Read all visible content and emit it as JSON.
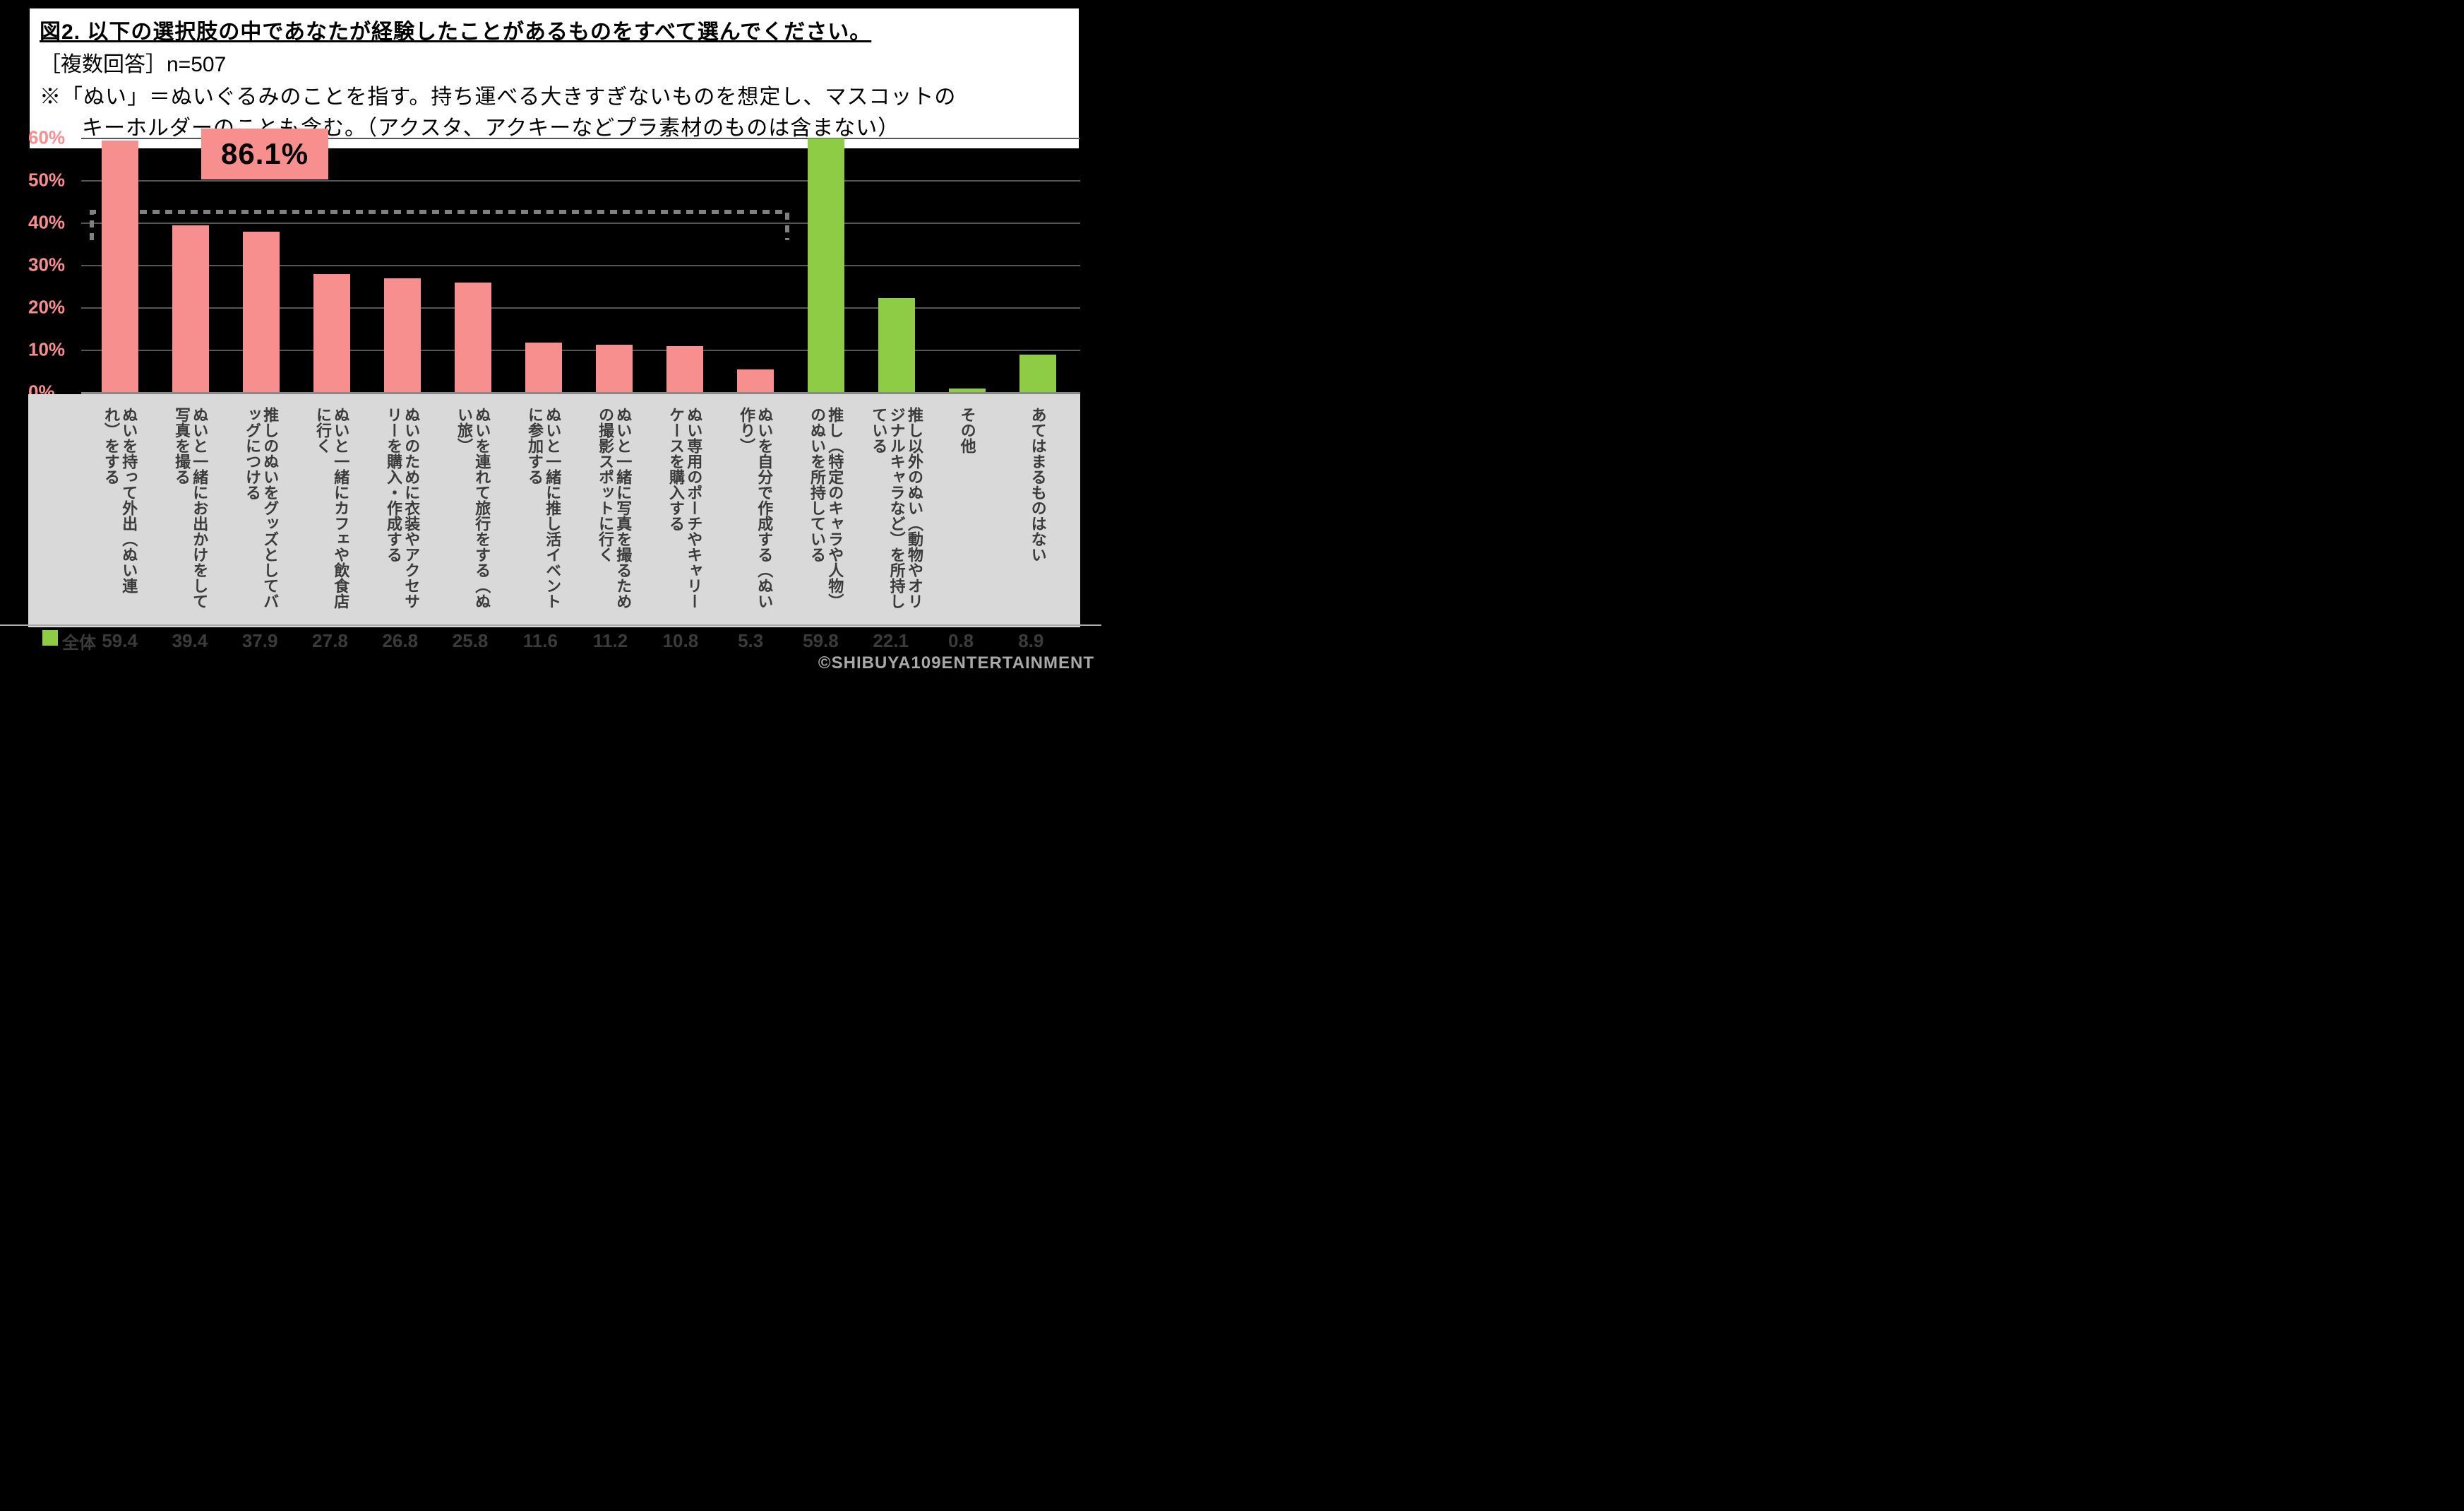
{
  "header": {
    "title": "図2. 以下の選択肢の中であなたが経験したことがあるものをすべて選んでください。",
    "subtitle": "［複数回答］n=507",
    "note1": "※「ぬい」＝ぬいぐるみのことを指す。持ち運べる大きすぎないものを想定し、マスコットの",
    "note2": "キーホルダーのことも含む。（アクスタ、アクキーなどプラ素材のものは含まない）"
  },
  "chart": {
    "type": "bar",
    "ylim": [
      0,
      60
    ],
    "ytick_step": 10,
    "ytick_labels": [
      "0%",
      "10%",
      "20%",
      "30%",
      "40%",
      "50%",
      "60%"
    ],
    "ylabel_color": "#f68f8e",
    "grid_color": "#555555",
    "baseline_color": "#888888",
    "callout": "86.1%",
    "callout_bg": "#f68f8e",
    "callout_color": "#000000",
    "bars": [
      {
        "label": "ぬいを持って外出（ぬい連れ）をする",
        "value": 59.4,
        "color": "#f68f8e"
      },
      {
        "label": "ぬいと一緒にお出かけをして写真を撮る",
        "value": 39.4,
        "color": "#f68f8e"
      },
      {
        "label": "推しのぬいをグッズとしてバッグにつける",
        "value": 37.9,
        "color": "#f68f8e"
      },
      {
        "label": "ぬいと一緒にカフェや飲食店に行く",
        "value": 27.8,
        "color": "#f68f8e"
      },
      {
        "label": "ぬいのために衣装やアクセサリーを購入・作成する",
        "value": 26.8,
        "color": "#f68f8e"
      },
      {
        "label": "ぬいを連れて旅行をする（ぬい旅）",
        "value": 25.8,
        "color": "#f68f8e"
      },
      {
        "label": "ぬいと一緒に推し活イベントに参加する",
        "value": 11.6,
        "color": "#f68f8e"
      },
      {
        "label": "ぬいと一緒に写真を撮るための撮影スポットに行く",
        "value": 11.2,
        "color": "#f68f8e"
      },
      {
        "label": "ぬい専用のポーチやキャリーケースを購入する",
        "value": 10.8,
        "color": "#f68f8e"
      },
      {
        "label": "ぬいを自分で作成する（ぬい作り）",
        "value": 5.3,
        "color": "#f68f8e"
      },
      {
        "label": "推し（特定のキャラや人物）のぬいを所持している",
        "value": 59.8,
        "color": "#8ecc46"
      },
      {
        "label": "推し以外のぬい（動物やオリジナルキャラなど）を所持している",
        "value": 22.1,
        "color": "#8ecc46"
      },
      {
        "label": "その他",
        "value": 0.8,
        "color": "#8ecc46"
      },
      {
        "label": "あてはまるものはない",
        "value": 8.9,
        "color": "#8ecc46"
      }
    ],
    "bracket": {
      "start_index": 0,
      "end_index": 9,
      "stroke": "#808080",
      "dash": "10 8",
      "width": 6
    }
  },
  "legend": {
    "label": "全体",
    "swatch_color": "#8ecc46"
  },
  "footer": {
    "copyright": "©SHIBUYA109ENTERTAINMENT"
  },
  "colors": {
    "background": "#000000",
    "header_bg": "#ffffff",
    "xlabel_bg": "#d9d9d9",
    "text_dark": "#3b3b3b"
  }
}
